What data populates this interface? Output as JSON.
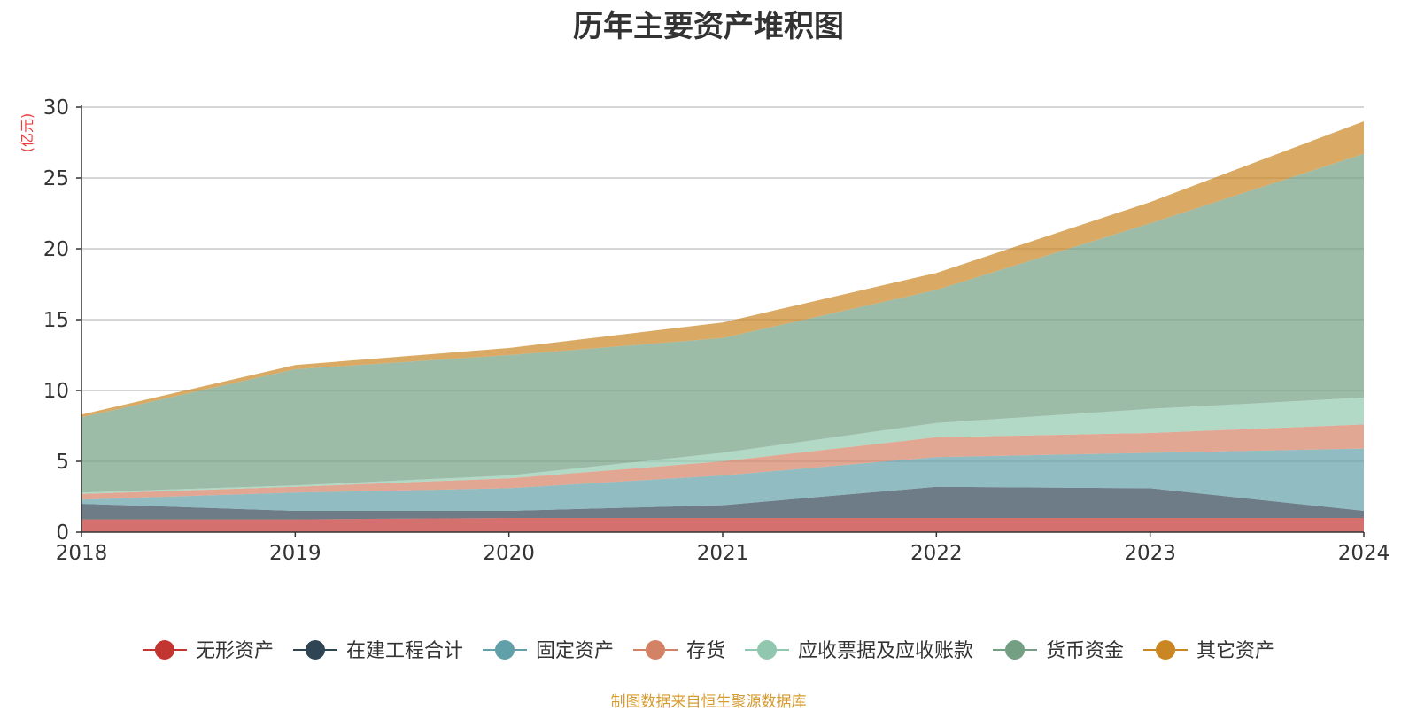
{
  "chart_data": {
    "type": "area",
    "stacked": true,
    "title": "历年主要资产堆积图",
    "ylabel": "(亿元)",
    "x": [
      "2018",
      "2019",
      "2020",
      "2021",
      "2022",
      "2023",
      "2024"
    ],
    "ylim": [
      0,
      30
    ],
    "yticks": [
      0,
      5,
      10,
      15,
      20,
      25,
      30
    ],
    "grid": true,
    "legend_position": "bottom",
    "series": [
      {
        "name": "无形资产",
        "color": "#c23531",
        "values": [
          0.9,
          0.9,
          1.0,
          1.0,
          1.0,
          1.0,
          1.0
        ]
      },
      {
        "name": "在建工程合计",
        "color": "#2f4554",
        "values": [
          1.1,
          0.6,
          0.5,
          0.9,
          2.2,
          2.1,
          0.5
        ]
      },
      {
        "name": "固定资产",
        "color": "#61a0a8",
        "values": [
          0.3,
          1.3,
          1.6,
          2.1,
          2.1,
          2.5,
          4.4
        ]
      },
      {
        "name": "存货",
        "color": "#d48265",
        "values": [
          0.4,
          0.4,
          0.7,
          1.0,
          1.4,
          1.4,
          1.7
        ]
      },
      {
        "name": "应收票据及应收账款",
        "color": "#91c7ae",
        "values": [
          0.1,
          0.1,
          0.2,
          0.6,
          1.0,
          1.7,
          1.9
        ]
      },
      {
        "name": "货币资金",
        "color": "#749f83",
        "values": [
          5.3,
          8.2,
          8.5,
          8.1,
          9.4,
          13.1,
          17.2
        ]
      },
      {
        "name": "其它资产",
        "color": "#ca8622",
        "values": [
          0.2,
          0.3,
          0.5,
          1.1,
          1.2,
          1.5,
          2.3
        ]
      }
    ]
  },
  "source_note": "制图数据来自恒生聚源数据库"
}
